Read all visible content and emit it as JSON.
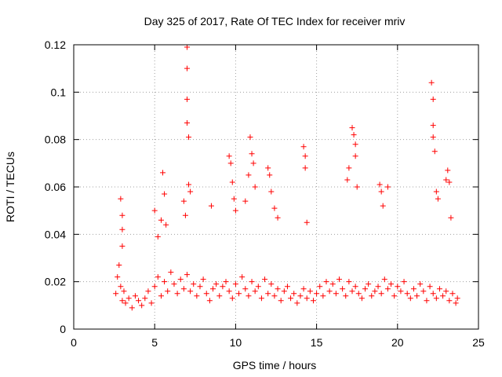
{
  "chart_data": {
    "type": "scatter",
    "title": "Day 325 of 2017, Rate Of TEC Index for receiver mriv",
    "xlabel": "GPS time / hours",
    "ylabel": "ROTI / TECUs",
    "xlim": [
      0,
      25
    ],
    "ylim": [
      0,
      0.12
    ],
    "xticks": [
      0,
      5,
      10,
      15,
      20,
      25
    ],
    "xtick_labels": [
      "0",
      "5",
      "10",
      "15",
      "20",
      "25"
    ],
    "yticks": [
      0,
      0.02,
      0.04,
      0.06,
      0.08,
      0.1,
      0.12
    ],
    "ytick_labels": [
      "0",
      "0.02",
      "0.04",
      "0.06",
      "0.08",
      "0.1",
      "0.12"
    ],
    "grid": true,
    "marker": "+",
    "color": "#ff0000",
    "series": [
      {
        "name": "ROTI",
        "x": [
          2.6,
          2.7,
          2.8,
          2.9,
          3.0,
          3.1,
          3.2,
          3.4,
          3.6,
          3.8,
          4.0,
          4.2,
          4.4,
          4.6,
          4.8,
          5.0,
          5.2,
          5.4,
          5.6,
          5.8,
          6.0,
          6.2,
          6.4,
          6.6,
          6.8,
          7.0,
          7.2,
          7.4,
          7.6,
          7.8,
          8.0,
          8.2,
          8.4,
          8.6,
          8.8,
          9.0,
          9.2,
          9.4,
          9.6,
          9.8,
          10.0,
          10.2,
          10.4,
          10.6,
          10.8,
          11.0,
          11.2,
          11.4,
          11.6,
          11.8,
          12.0,
          12.2,
          12.4,
          12.6,
          12.8,
          13.0,
          13.2,
          13.4,
          13.6,
          13.8,
          14.0,
          14.2,
          14.4,
          14.6,
          14.8,
          15.0,
          15.2,
          15.4,
          15.6,
          15.8,
          16.0,
          16.2,
          16.4,
          16.6,
          16.8,
          17.0,
          17.2,
          17.4,
          17.6,
          17.8,
          18.0,
          18.2,
          18.4,
          18.6,
          18.8,
          19.0,
          19.2,
          19.4,
          19.6,
          19.8,
          20.0,
          20.2,
          20.4,
          20.6,
          20.8,
          21.0,
          21.2,
          21.4,
          21.6,
          21.8,
          22.0,
          22.2,
          22.4,
          22.6,
          22.8,
          23.0,
          23.2,
          23.4,
          23.6,
          23.7,
          2.9,
          3.0,
          3.0,
          3.0,
          5.0,
          5.2,
          5.4,
          5.5,
          5.6,
          5.7,
          6.8,
          6.9,
          7.0,
          7.0,
          7.0,
          7.0,
          7.1,
          7.1,
          7.2,
          8.5,
          9.6,
          9.7,
          9.8,
          9.9,
          10.0,
          10.6,
          10.8,
          10.9,
          11.0,
          11.1,
          11.2,
          12.0,
          12.1,
          12.2,
          12.4,
          12.6,
          14.2,
          14.3,
          14.3,
          14.4,
          16.9,
          17.0,
          17.2,
          17.3,
          17.4,
          17.4,
          17.5,
          18.9,
          19.0,
          19.1,
          19.4,
          22.1,
          22.2,
          22.2,
          22.2,
          22.3,
          22.4,
          22.5,
          23.0,
          23.1,
          23.2,
          23.3
        ],
        "y": [
          0.015,
          0.022,
          0.027,
          0.018,
          0.012,
          0.016,
          0.011,
          0.013,
          0.009,
          0.014,
          0.012,
          0.01,
          0.013,
          0.016,
          0.011,
          0.018,
          0.022,
          0.014,
          0.02,
          0.016,
          0.024,
          0.019,
          0.015,
          0.021,
          0.017,
          0.023,
          0.016,
          0.019,
          0.014,
          0.018,
          0.021,
          0.015,
          0.012,
          0.017,
          0.019,
          0.014,
          0.018,
          0.02,
          0.016,
          0.013,
          0.019,
          0.015,
          0.022,
          0.017,
          0.014,
          0.02,
          0.016,
          0.018,
          0.013,
          0.021,
          0.015,
          0.019,
          0.014,
          0.017,
          0.012,
          0.016,
          0.018,
          0.013,
          0.015,
          0.011,
          0.014,
          0.017,
          0.013,
          0.016,
          0.012,
          0.015,
          0.018,
          0.014,
          0.02,
          0.016,
          0.019,
          0.015,
          0.021,
          0.017,
          0.014,
          0.02,
          0.016,
          0.018,
          0.015,
          0.013,
          0.017,
          0.019,
          0.014,
          0.016,
          0.018,
          0.015,
          0.021,
          0.017,
          0.019,
          0.014,
          0.018,
          0.016,
          0.02,
          0.015,
          0.013,
          0.017,
          0.014,
          0.019,
          0.016,
          0.012,
          0.018,
          0.015,
          0.013,
          0.017,
          0.014,
          0.016,
          0.012,
          0.015,
          0.011,
          0.013,
          0.055,
          0.035,
          0.042,
          0.048,
          0.05,
          0.039,
          0.046,
          0.066,
          0.057,
          0.044,
          0.054,
          0.048,
          0.119,
          0.11,
          0.097,
          0.087,
          0.081,
          0.061,
          0.058,
          0.052,
          0.073,
          0.07,
          0.062,
          0.055,
          0.05,
          0.054,
          0.065,
          0.081,
          0.074,
          0.07,
          0.06,
          0.068,
          0.065,
          0.058,
          0.051,
          0.047,
          0.077,
          0.073,
          0.068,
          0.045,
          0.063,
          0.068,
          0.085,
          0.082,
          0.078,
          0.073,
          0.06,
          0.061,
          0.058,
          0.052,
          0.06,
          0.104,
          0.097,
          0.086,
          0.081,
          0.075,
          0.058,
          0.055,
          0.063,
          0.067,
          0.062,
          0.047
        ]
      }
    ]
  }
}
